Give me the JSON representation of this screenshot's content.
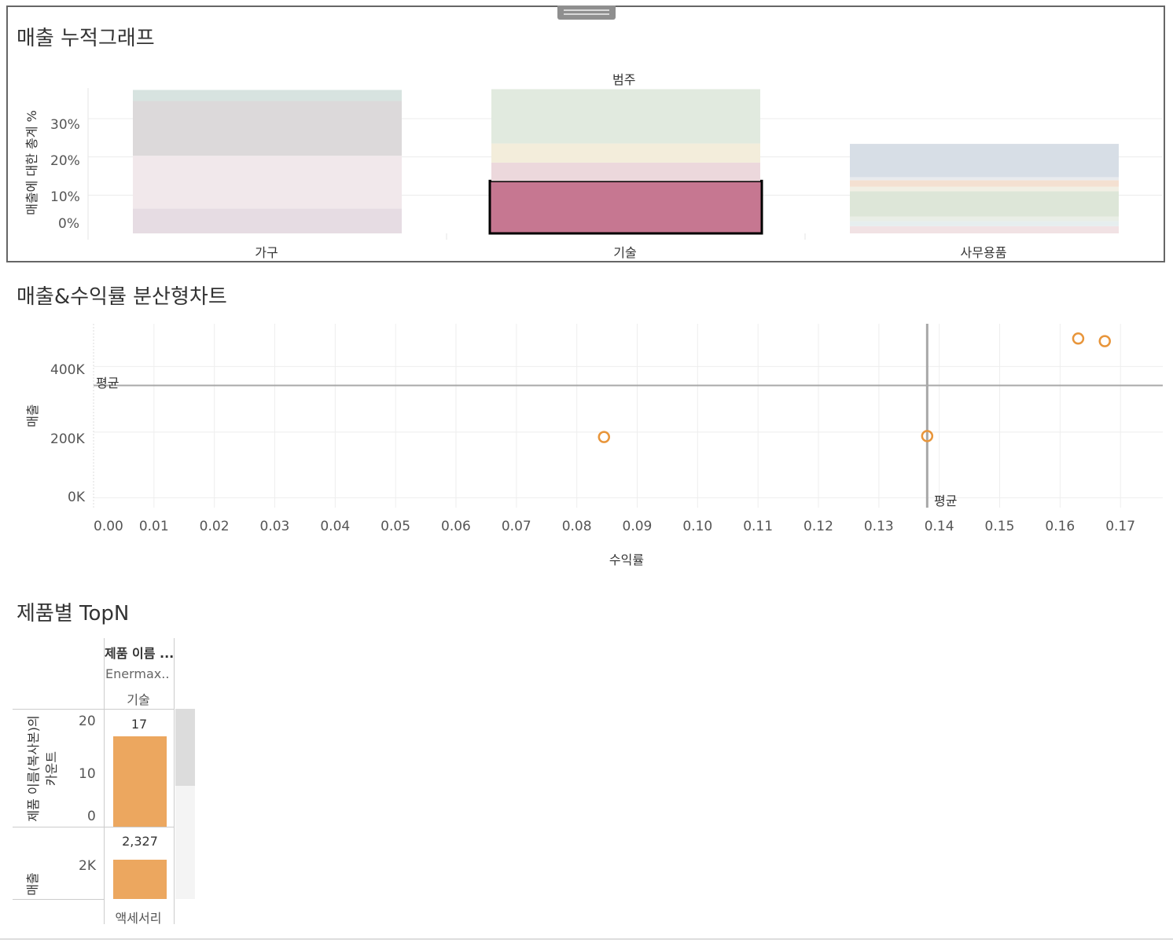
{
  "stacked_chart": {
    "title": "매출 누적그래프",
    "header": "범주",
    "y_axis_label": "매출에 대한 총계 %",
    "y_ticks": [
      "30%",
      "20%",
      "10%",
      "0%"
    ],
    "categories": [
      "가구",
      "기술",
      "사무용품"
    ],
    "selected_category": "기술",
    "selected_value_percent": 13.7
  },
  "scatter_chart": {
    "title": "매출&수익률 분산형차트",
    "y_axis_label": "매출",
    "x_axis_label": "수익률",
    "y_ticks": [
      "400K",
      "200K",
      "0K"
    ],
    "x_ticks": [
      "0.00",
      "0.01",
      "0.02",
      "0.03",
      "0.04",
      "0.05",
      "0.06",
      "0.07",
      "0.08",
      "0.09",
      "0.10",
      "0.11",
      "0.12",
      "0.13",
      "0.14",
      "0.15",
      "0.16",
      "0.17"
    ],
    "avg_line_label_h": "평균",
    "avg_line_label_v": "평균",
    "avg_sales": 342000,
    "avg_profit_rate": 0.138,
    "point_color": "#e8953a"
  },
  "topn_chart": {
    "title": "제품별 TopN",
    "col_header": "제품 이름 ...",
    "col_value": "Enermax..",
    "col_category": "기술",
    "row1_axis_label_line1": "제품 이름(복사본)의",
    "row1_axis_label_line2": "카운트",
    "row1_ticks": [
      "20",
      "10",
      "0"
    ],
    "row1_value_label": "17",
    "row2_axis_label": "매출",
    "row2_ticks": [
      "2K"
    ],
    "row2_value_label": "2,327",
    "footer": "액세서리",
    "bar_color": "#eca75f"
  },
  "chart_data": [
    {
      "type": "bar",
      "title": "매출 누적그래프",
      "header": "범주",
      "ylabel": "매출에 대한 총계 %",
      "categories": [
        "가구",
        "기술",
        "사무용품"
      ],
      "stacked": true,
      "ylim": [
        0,
        38
      ],
      "segments": [
        [
          {
            "value": 6.5,
            "color": "#e6dce3"
          },
          {
            "value": 13.8,
            "color": "#f1e8eb"
          },
          {
            "value": 14.3,
            "color": "#dcd9da"
          },
          {
            "value": 2.9,
            "color": "#d7e3e0"
          }
        ],
        [
          {
            "value": 13.7,
            "color": "#c67791",
            "highlight": true
          },
          {
            "value": 4.8,
            "color": "#ecd8dc"
          },
          {
            "value": 5.0,
            "color": "#f3eddb"
          },
          {
            "value": 14.2,
            "color": "#e1eadf"
          }
        ],
        [
          {
            "value": 1.9,
            "color": "#f1e2e4"
          },
          {
            "value": 1.3,
            "color": "#e6eeef"
          },
          {
            "value": 1.2,
            "color": "#e9eee6"
          },
          {
            "value": 6.6,
            "color": "#dde6d8"
          },
          {
            "value": 1.2,
            "color": "#f1efe4"
          },
          {
            "value": 1.7,
            "color": "#f4e0d1"
          },
          {
            "value": 0.8,
            "color": "#e8ebee"
          },
          {
            "value": 8.7,
            "color": "#d7dee6"
          }
        ]
      ],
      "highlighted_category": "기술"
    },
    {
      "type": "scatter",
      "title": "매출&수익률 분산형차트",
      "xlabel": "수익률",
      "ylabel": "매출",
      "xlim": [
        0,
        0.177
      ],
      "ylim": [
        -30000,
        530000
      ],
      "grid": true,
      "points": [
        {
          "x": 0.0845,
          "y": 185000
        },
        {
          "x": 0.138,
          "y": 188000
        },
        {
          "x": 0.163,
          "y": 485000
        },
        {
          "x": 0.1674,
          "y": 477000
        }
      ],
      "reference_lines": [
        {
          "axis": "y",
          "value": 342000,
          "label": "평균"
        },
        {
          "axis": "x",
          "value": 0.138,
          "label": "평균"
        }
      ]
    },
    {
      "type": "bar",
      "title": "제품별 TopN",
      "categories": [
        "Enermax.."
      ],
      "category_group": "기술",
      "footer": "액세서리",
      "series": [
        {
          "name": "제품 이름(복사본)의 카운트",
          "values": [
            17
          ],
          "ylim": [
            0,
            20
          ]
        },
        {
          "name": "매출",
          "values": [
            2327
          ],
          "ylim": [
            0,
            3000
          ]
        }
      ]
    }
  ]
}
